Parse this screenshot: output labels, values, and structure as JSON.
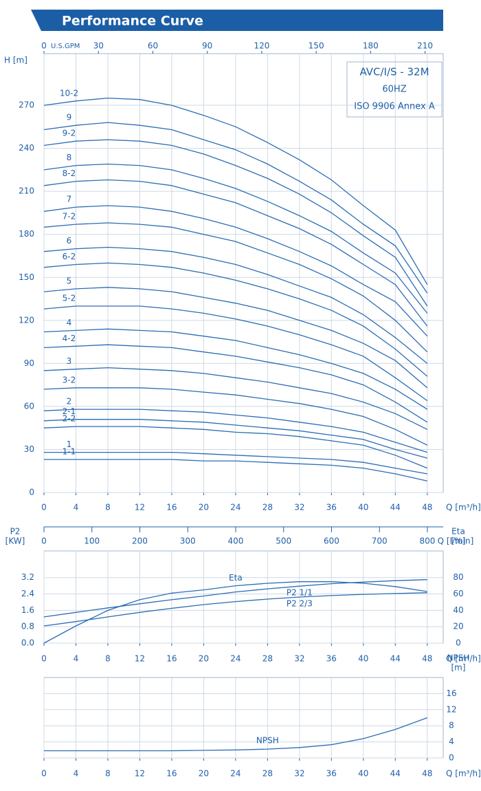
{
  "chart_data": [
    {
      "type": "line",
      "title": "Performance Curve",
      "x": [
        0,
        4,
        8,
        12,
        16,
        20,
        24,
        28,
        32,
        36,
        40,
        44,
        48
      ],
      "xlim": [
        0,
        50
      ],
      "xticks": [
        0,
        4,
        8,
        12,
        16,
        20,
        24,
        28,
        32,
        36,
        40,
        44,
        48
      ],
      "x_label": "Q [m³/h]",
      "ylim": [
        0,
        306
      ],
      "yticks": [
        0,
        30,
        60,
        90,
        120,
        150,
        180,
        210,
        240,
        270
      ],
      "y_label": "H [m]",
      "grid": true,
      "color": "#2b6cb4",
      "x2_label": "U.S.GPM",
      "x2lim": [
        0,
        220
      ],
      "x2ticks": [
        0,
        30,
        60,
        90,
        120,
        150,
        180,
        210
      ],
      "x3_label": "Q [l/min]",
      "x3lim": [
        0,
        833
      ],
      "x3ticks": [
        0,
        100,
        200,
        300,
        400,
        500,
        600,
        700,
        800
      ],
      "annotations": [
        "AVC/I/S - 32M",
        "60HZ",
        "ISO 9906 Annex A"
      ],
      "series": [
        {
          "name": "10-2",
          "values": [
            270,
            273,
            275,
            274,
            270,
            263,
            255,
            244,
            232,
            218,
            200,
            183,
            145
          ]
        },
        {
          "name": "9",
          "values": [
            253,
            256,
            258,
            256,
            253,
            246,
            239,
            229,
            217,
            204,
            187,
            172,
            139
          ]
        },
        {
          "name": "9-2",
          "values": [
            242,
            245,
            246,
            245,
            242,
            236,
            228,
            219,
            208,
            195,
            179,
            164,
            130
          ]
        },
        {
          "name": "8",
          "values": [
            225,
            228,
            229,
            228,
            225,
            219,
            212,
            203,
            193,
            182,
            167,
            153,
            125
          ]
        },
        {
          "name": "8-2",
          "values": [
            214,
            217,
            218,
            217,
            214,
            208,
            202,
            193,
            184,
            173,
            159,
            145,
            116
          ]
        },
        {
          "name": "7",
          "values": [
            196,
            199,
            200,
            199,
            196,
            191,
            185,
            177,
            168,
            158,
            145,
            133,
            109
          ]
        },
        {
          "name": "7-2",
          "values": [
            185,
            187,
            188,
            187,
            185,
            180,
            175,
            167,
            159,
            149,
            137,
            120,
            98
          ]
        },
        {
          "name": "6",
          "values": [
            168,
            170,
            171,
            170,
            168,
            164,
            159,
            152,
            144,
            136,
            124,
            108,
            90
          ]
        },
        {
          "name": "6-2",
          "values": [
            157,
            159,
            160,
            159,
            157,
            153,
            148,
            142,
            135,
            127,
            116,
            100,
            81
          ]
        },
        {
          "name": "5",
          "values": [
            140,
            142,
            143,
            142,
            140,
            136,
            132,
            127,
            120,
            113,
            104,
            92,
            73
          ]
        },
        {
          "name": "5-2",
          "values": [
            128,
            130,
            130,
            130,
            128,
            125,
            121,
            116,
            110,
            103,
            95,
            80,
            64
          ]
        },
        {
          "name": "4",
          "values": [
            112,
            113,
            114,
            113,
            112,
            109,
            106,
            101,
            96,
            90,
            83,
            72,
            58
          ]
        },
        {
          "name": "4-2",
          "values": [
            101,
            102,
            103,
            102,
            101,
            98,
            95,
            91,
            87,
            82,
            75,
            63,
            49
          ]
        },
        {
          "name": "3",
          "values": [
            85,
            86,
            87,
            86,
            85,
            83,
            80,
            77,
            73,
            69,
            63,
            55,
            44
          ]
        },
        {
          "name": "3-2",
          "values": [
            72,
            73,
            73,
            73,
            72,
            70,
            68,
            65,
            62,
            58,
            53,
            44,
            33
          ]
        },
        {
          "name": "2",
          "values": [
            57,
            58,
            58,
            58,
            57,
            56,
            54,
            52,
            49,
            46,
            42,
            35,
            28
          ]
        },
        {
          "name": "2-1",
          "values": [
            50,
            51,
            51,
            51,
            50,
            49,
            47,
            45,
            43,
            40,
            37,
            30,
            24
          ]
        },
        {
          "name": "2-2",
          "values": [
            45,
            46,
            46,
            46,
            45,
            44,
            42,
            41,
            39,
            36,
            33,
            26,
            17
          ]
        },
        {
          "name": "1",
          "values": [
            28,
            28,
            28,
            28,
            28,
            27,
            26,
            25,
            24,
            23,
            21,
            17,
            13
          ]
        },
        {
          "name": "1-1",
          "values": [
            23,
            23,
            23,
            23,
            23,
            22,
            22,
            21,
            20,
            19,
            17,
            13,
            8
          ]
        }
      ]
    },
    {
      "type": "line",
      "x": [
        0,
        4,
        8,
        12,
        16,
        20,
        24,
        28,
        32,
        36,
        40,
        44,
        48
      ],
      "xlim": [
        0,
        50
      ],
      "xticks": [
        0,
        4,
        8,
        12,
        16,
        20,
        24,
        28,
        32,
        36,
        40,
        44,
        48
      ],
      "x_label": "Q [m³/h]",
      "ylim": [
        0,
        4.5
      ],
      "yticks": [
        {
          "value": 0,
          "label": "0.0"
        },
        0.8,
        1.6,
        2.4,
        3.2
      ],
      "y_label": [
        "P2",
        "[KW]"
      ],
      "y2lim": [
        0,
        112.5
      ],
      "y2ticks": [
        0,
        20,
        40,
        60,
        80
      ],
      "y2_label": [
        "Eta",
        "[%]"
      ],
      "grid": true,
      "color": "#2b6cb4",
      "series": [
        {
          "name": "Eta",
          "axis": "y2",
          "values": [
            0,
            21,
            40,
            53,
            61,
            65,
            70,
            73,
            75,
            75,
            73,
            69,
            63
          ]
        },
        {
          "name": "P2 1/1",
          "values": [
            1.28,
            1.5,
            1.72,
            1.92,
            2.12,
            2.3,
            2.5,
            2.65,
            2.78,
            2.9,
            2.98,
            3.05,
            3.1
          ]
        },
        {
          "name": "P2 2/3",
          "values": [
            0.84,
            1.05,
            1.28,
            1.5,
            1.7,
            1.88,
            2.03,
            2.15,
            2.25,
            2.32,
            2.38,
            2.42,
            2.46
          ]
        }
      ]
    },
    {
      "type": "line",
      "x": [
        0,
        4,
        8,
        12,
        16,
        20,
        24,
        28,
        32,
        36,
        40,
        44,
        48
      ],
      "xlim": [
        0,
        50
      ],
      "xticks": [
        0,
        4,
        8,
        12,
        16,
        20,
        24,
        28,
        32,
        36,
        40,
        44,
        48
      ],
      "x_label": "Q [m³/h]",
      "ylim": [
        0,
        20
      ],
      "yticks": [
        0,
        4,
        8,
        12,
        16
      ],
      "y_side": "right",
      "y_label": [
        "NPSH",
        "[m]"
      ],
      "grid": true,
      "color": "#2b6cb4",
      "series": [
        {
          "name": "NPSH",
          "values": [
            1.8,
            1.8,
            1.8,
            1.8,
            1.8,
            1.9,
            2.0,
            2.2,
            2.6,
            3.3,
            4.8,
            7.1,
            10
          ]
        }
      ]
    }
  ]
}
